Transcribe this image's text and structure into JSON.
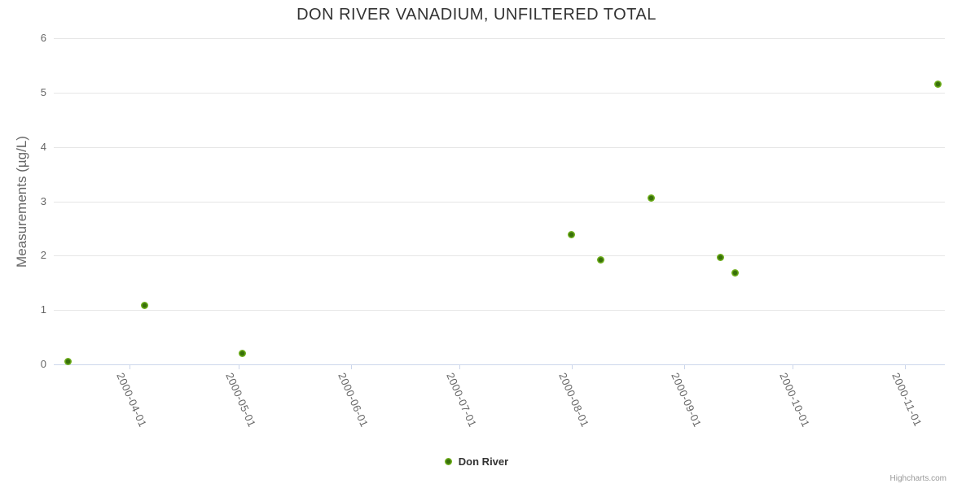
{
  "chart_data": {
    "type": "scatter",
    "title": "DON RIVER VANADIUM, UNFILTERED TOTAL",
    "xlabel": "",
    "ylabel": "Measurements (µg/L)",
    "ylim": [
      0,
      6
    ],
    "yticks": [
      0,
      1,
      2,
      3,
      4,
      5,
      6
    ],
    "xlim": [
      "2000-03-11",
      "2000-11-12"
    ],
    "xtick_labels": [
      "2000-04-01",
      "2000-05-01",
      "2000-06-01",
      "2000-07-01",
      "2000-08-01",
      "2000-09-01",
      "2000-10-01",
      "2000-11-01"
    ],
    "grid": "horizontal",
    "legend_position": "bottom-center",
    "series": [
      {
        "name": "Don River",
        "marker": "circle",
        "marker_color": "#7cbd27",
        "marker_core_color": "#38700a",
        "points": [
          {
            "date": "2000-03-15",
            "value": 0.05
          },
          {
            "date": "2000-04-05",
            "value": 1.08
          },
          {
            "date": "2000-05-02",
            "value": 0.2
          },
          {
            "date": "2000-08-01",
            "value": 2.38
          },
          {
            "date": "2000-08-09",
            "value": 1.92
          },
          {
            "date": "2000-08-23",
            "value": 3.06
          },
          {
            "date": "2000-09-11",
            "value": 1.97
          },
          {
            "date": "2000-09-15",
            "value": 1.69
          },
          {
            "date": "2000-11-10",
            "value": 5.15
          }
        ]
      }
    ]
  },
  "credits": {
    "label": "Highcharts.com"
  },
  "colors": {
    "grid": "#e6e6e6",
    "axis_line": "#ccd6eb",
    "title_text": "#333333",
    "axis_text": "#666666",
    "legend_text": "#333333",
    "credits_text": "#999999"
  }
}
